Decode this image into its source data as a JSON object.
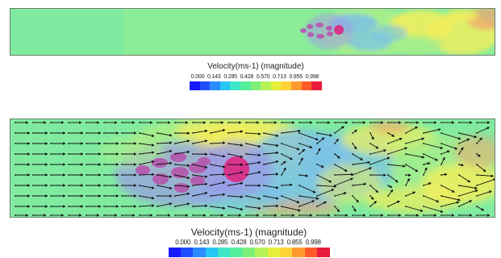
{
  "top_legend": {
    "title": "Velocity(ms-1) (magnitude)",
    "ticks": [
      "0.000",
      "0.143",
      "0.285",
      "0.428",
      "0.570",
      "0.713",
      "0.855",
      "0.998"
    ]
  },
  "bottom_legend": {
    "title": "Velocity(ms-1) (magnitude)",
    "ticks": [
      "0.000",
      "0.143",
      "0.285",
      "0.428",
      "0.570",
      "0.713",
      "0.855",
      "0.998"
    ]
  },
  "colormap": [
    "#1a1aff",
    "#1f4fff",
    "#2a8cff",
    "#25c6f4",
    "#3fe6c8",
    "#55ee9a",
    "#7ef07a",
    "#b6f25a",
    "#e6ee3c",
    "#ffd238",
    "#ff9a30",
    "#ff5a2a",
    "#e81c3a"
  ],
  "field_colors": {
    "background": "#80eba0",
    "mid": "#a8ee8a",
    "high": "#f3ee5c",
    "peak": "#f2a070",
    "low": "#7cc2e8",
    "vortex": "#b25fb0",
    "vortex_core": "#d7348c",
    "vortex_halo": "#9a9ae8"
  }
}
